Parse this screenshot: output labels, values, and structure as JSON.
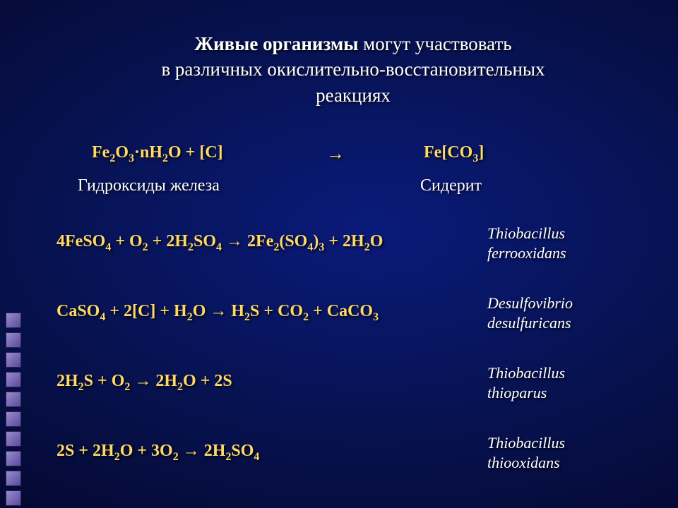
{
  "colors": {
    "text": "#ffffff",
    "formula": "#ffd966",
    "square_light": "#9a8cd0",
    "square_dark": "#5a4a9a",
    "bg_center": "#0a1a7a",
    "bg_edge": "#020418"
  },
  "typography": {
    "title_fontsize": 27,
    "formula_fontsize": 24,
    "label_fontsize": 24,
    "organism_fontsize": 22
  },
  "title": {
    "bold": "Живые организмы",
    "rest1": " могут участвовать",
    "line2": "в различных окислительно-восстановительных",
    "line3": "реакциях"
  },
  "top": {
    "left_formula": "Fe₂O₃·nH₂O + [C]",
    "arrow": "→",
    "right_formula": "Fe[CO₃]",
    "left_label": "Гидроксиды железа",
    "right_label": "Сидерит"
  },
  "eq1": {
    "formula": "4FeSO₄ + O₂ + 2H₂SO₄ → 2Fe₂(SO₄)₃ + 2H₂O",
    "org1": "Thiobacillus",
    "org2": "ferrooxidans"
  },
  "eq2": {
    "formula": "CaSO₄ + 2[C] + H₂O → H₂S + CO₂ + CaCO₃",
    "org1": "Desulfovibrio",
    "org2": "desulfuricans"
  },
  "eq3": {
    "formula": "2H₂S + O₂ → 2H₂O + 2S",
    "org1": "Thiobacillus",
    "org2": "thioparus"
  },
  "eq4": {
    "formula": "2S + 2H₂O + 3O₂ → 2H₂SO₄",
    "org1": "Thiobacillus",
    "org2": "thiooxidans"
  },
  "squares_count": 10
}
